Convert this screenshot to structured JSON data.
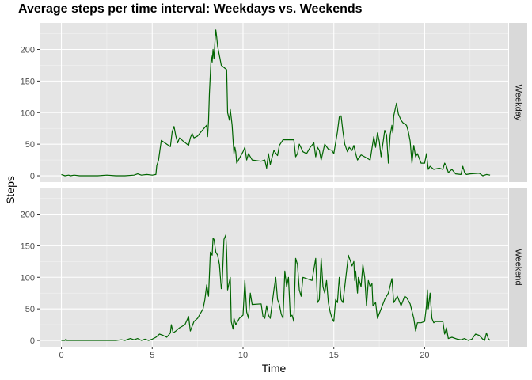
{
  "chart_data": {
    "type": "line",
    "title": "Average steps per time interval: Weekdays vs. Weekends",
    "xlabel": "Time",
    "ylabel": "Steps",
    "xlim": [
      -1.2,
      24.6
    ],
    "ylim": [
      -10,
      242
    ],
    "x_ticks": [
      0,
      5,
      10,
      15,
      20
    ],
    "y_ticks": [
      0,
      50,
      100,
      150,
      200
    ],
    "grid": true,
    "line_color": "#006400",
    "panel_background": "#e5e5e5",
    "strip_background": "#d9d9d9",
    "facets": [
      {
        "label": "Weekday",
        "points": [
          [
            0,
            2
          ],
          [
            0.2,
            0
          ],
          [
            0.4,
            1
          ],
          [
            0.5,
            0
          ],
          [
            0.7,
            1
          ],
          [
            1,
            0
          ],
          [
            1.5,
            0
          ],
          [
            2,
            0
          ],
          [
            2.5,
            1
          ],
          [
            3,
            0
          ],
          [
            3.5,
            0
          ],
          [
            4,
            1
          ],
          [
            4.2,
            3
          ],
          [
            4.4,
            1
          ],
          [
            4.7,
            2
          ],
          [
            5,
            1
          ],
          [
            5.2,
            2
          ],
          [
            5.25,
            16
          ],
          [
            5.35,
            25
          ],
          [
            5.5,
            56
          ],
          [
            5.8,
            50
          ],
          [
            6,
            46
          ],
          [
            6.1,
            70
          ],
          [
            6.2,
            78
          ],
          [
            6.3,
            63
          ],
          [
            6.4,
            52
          ],
          [
            6.5,
            60
          ],
          [
            6.7,
            55
          ],
          [
            7,
            48
          ],
          [
            7.1,
            60
          ],
          [
            7.2,
            67
          ],
          [
            7.3,
            60
          ],
          [
            7.5,
            63
          ],
          [
            7.7,
            70
          ],
          [
            8,
            80
          ],
          [
            8.05,
            62
          ],
          [
            8.1,
            86
          ],
          [
            8.15,
            130
          ],
          [
            8.25,
            190
          ],
          [
            8.3,
            180
          ],
          [
            8.35,
            200
          ],
          [
            8.4,
            185
          ],
          [
            8.45,
            210
          ],
          [
            8.5,
            231
          ],
          [
            8.55,
            220
          ],
          [
            8.6,
            205
          ],
          [
            8.7,
            190
          ],
          [
            8.8,
            175
          ],
          [
            9.1,
            168
          ],
          [
            9.15,
            100
          ],
          [
            9.25,
            88
          ],
          [
            9.3,
            105
          ],
          [
            9.4,
            80
          ],
          [
            9.5,
            35
          ],
          [
            9.55,
            45
          ],
          [
            9.6,
            38
          ],
          [
            9.65,
            20
          ],
          [
            10,
            38
          ],
          [
            10.1,
            45
          ],
          [
            10.2,
            25
          ],
          [
            10.3,
            35
          ],
          [
            10.5,
            25
          ],
          [
            11,
            23
          ],
          [
            11.2,
            25
          ],
          [
            11.3,
            12
          ],
          [
            11.4,
            35
          ],
          [
            11.5,
            18
          ],
          [
            11.7,
            40
          ],
          [
            11.9,
            32
          ],
          [
            12,
            48
          ],
          [
            12.2,
            57
          ],
          [
            12.5,
            57
          ],
          [
            12.8,
            57
          ],
          [
            12.9,
            30
          ],
          [
            13,
            35
          ],
          [
            13.1,
            50
          ],
          [
            13.3,
            38
          ],
          [
            13.5,
            35
          ],
          [
            13.7,
            45
          ],
          [
            13.9,
            52
          ],
          [
            14,
            30
          ],
          [
            14.1,
            45
          ],
          [
            14.2,
            40
          ],
          [
            14.3,
            25
          ],
          [
            14.5,
            50
          ],
          [
            14.7,
            42
          ],
          [
            14.9,
            40
          ],
          [
            15,
            35
          ],
          [
            15.2,
            70
          ],
          [
            15.3,
            93
          ],
          [
            15.4,
            95
          ],
          [
            15.5,
            70
          ],
          [
            15.6,
            50
          ],
          [
            15.75,
            38
          ],
          [
            15.85,
            45
          ],
          [
            16,
            40
          ],
          [
            16.1,
            48
          ],
          [
            16.2,
            35
          ],
          [
            16.3,
            25
          ],
          [
            16.5,
            33
          ],
          [
            16.7,
            30
          ],
          [
            17,
            25
          ],
          [
            17.2,
            62
          ],
          [
            17.3,
            45
          ],
          [
            17.4,
            68
          ],
          [
            17.5,
            55
          ],
          [
            17.6,
            30
          ],
          [
            17.8,
            72
          ],
          [
            17.9,
            65
          ],
          [
            18,
            20
          ],
          [
            18.1,
            65
          ],
          [
            18.2,
            80
          ],
          [
            18.25,
            68
          ],
          [
            18.3,
            95
          ],
          [
            18.45,
            115
          ],
          [
            18.55,
            98
          ],
          [
            18.7,
            88
          ],
          [
            18.8,
            84
          ],
          [
            19,
            80
          ],
          [
            19.1,
            70
          ],
          [
            19.2,
            55
          ],
          [
            19.3,
            20
          ],
          [
            19.4,
            48
          ],
          [
            19.5,
            30
          ],
          [
            19.6,
            35
          ],
          [
            19.8,
            20
          ],
          [
            20,
            20
          ],
          [
            20.1,
            35
          ],
          [
            20.2,
            10
          ],
          [
            20.3,
            15
          ],
          [
            20.5,
            10
          ],
          [
            20.8,
            12
          ],
          [
            21,
            10
          ],
          [
            21.1,
            20
          ],
          [
            21.2,
            15
          ],
          [
            21.3,
            5
          ],
          [
            21.5,
            10
          ],
          [
            21.7,
            3
          ],
          [
            22,
            2
          ],
          [
            22.1,
            15
          ],
          [
            22.2,
            5
          ],
          [
            22.3,
            2
          ],
          [
            22.5,
            3
          ],
          [
            23,
            4
          ],
          [
            23.2,
            0
          ],
          [
            23.4,
            2
          ],
          [
            23.6,
            1
          ]
        ]
      },
      {
        "label": "Weekend",
        "points": [
          [
            0,
            0
          ],
          [
            0.2,
            0
          ],
          [
            0.25,
            2
          ],
          [
            0.3,
            0
          ],
          [
            0.5,
            0
          ],
          [
            1,
            0
          ],
          [
            1.5,
            0
          ],
          [
            2,
            0
          ],
          [
            2.5,
            0
          ],
          [
            3,
            0
          ],
          [
            3.3,
            1
          ],
          [
            3.5,
            0
          ],
          [
            3.8,
            3
          ],
          [
            4,
            1
          ],
          [
            4.2,
            3
          ],
          [
            4.4,
            0
          ],
          [
            4.6,
            2
          ],
          [
            4.8,
            0
          ],
          [
            5,
            2
          ],
          [
            5.2,
            5
          ],
          [
            5.4,
            10
          ],
          [
            5.6,
            8
          ],
          [
            5.8,
            5
          ],
          [
            6,
            12
          ],
          [
            6.05,
            25
          ],
          [
            6.15,
            12
          ],
          [
            6.3,
            15
          ],
          [
            6.5,
            20
          ],
          [
            6.8,
            25
          ],
          [
            7,
            38
          ],
          [
            7.1,
            15
          ],
          [
            7.3,
            30
          ],
          [
            7.5,
            35
          ],
          [
            7.8,
            50
          ],
          [
            7.9,
            65
          ],
          [
            8,
            88
          ],
          [
            8.1,
            70
          ],
          [
            8.2,
            140
          ],
          [
            8.3,
            135
          ],
          [
            8.35,
            162
          ],
          [
            8.4,
            160
          ],
          [
            8.5,
            140
          ],
          [
            8.6,
            135
          ],
          [
            8.7,
            120
          ],
          [
            8.8,
            82
          ],
          [
            8.85,
            90
          ],
          [
            8.95,
            160
          ],
          [
            9.05,
            167
          ],
          [
            9.1,
            140
          ],
          [
            9.15,
            80
          ],
          [
            9.3,
            100
          ],
          [
            9.35,
            30
          ],
          [
            9.45,
            18
          ],
          [
            9.5,
            35
          ],
          [
            9.6,
            25
          ],
          [
            9.8,
            35
          ],
          [
            10,
            40
          ],
          [
            10.1,
            95
          ],
          [
            10.2,
            45
          ],
          [
            10.3,
            35
          ],
          [
            10.4,
            75
          ],
          [
            10.5,
            57
          ],
          [
            11,
            58
          ],
          [
            11.1,
            38
          ],
          [
            11.2,
            35
          ],
          [
            11.3,
            55
          ],
          [
            11.4,
            40
          ],
          [
            11.5,
            35
          ],
          [
            11.7,
            80
          ],
          [
            11.8,
            100
          ],
          [
            11.9,
            65
          ],
          [
            12,
            57
          ],
          [
            12.1,
            42
          ],
          [
            12.2,
            35
          ],
          [
            12.3,
            110
          ],
          [
            12.4,
            85
          ],
          [
            12.5,
            100
          ],
          [
            12.6,
            38
          ],
          [
            12.7,
            40
          ],
          [
            12.8,
            30
          ],
          [
            12.9,
            130
          ],
          [
            13,
            120
          ],
          [
            13.1,
            80
          ],
          [
            13.2,
            70
          ],
          [
            13.3,
            100
          ],
          [
            13.8,
            95
          ],
          [
            14,
            130
          ],
          [
            14.1,
            60
          ],
          [
            14.2,
            65
          ],
          [
            14.3,
            130
          ],
          [
            14.4,
            85
          ],
          [
            14.5,
            75
          ],
          [
            14.6,
            95
          ],
          [
            14.7,
            60
          ],
          [
            14.8,
            45
          ],
          [
            14.9,
            35
          ],
          [
            15,
            30
          ],
          [
            15.1,
            65
          ],
          [
            15.2,
            60
          ],
          [
            15.3,
            100
          ],
          [
            15.4,
            65
          ],
          [
            15.5,
            60
          ],
          [
            15.8,
            135
          ],
          [
            16,
            118
          ],
          [
            16.1,
            125
          ],
          [
            16.15,
            95
          ],
          [
            16.2,
            110
          ],
          [
            16.3,
            75
          ],
          [
            16.35,
            100
          ],
          [
            16.5,
            85
          ],
          [
            16.6,
            120
          ],
          [
            16.7,
            100
          ],
          [
            16.8,
            55
          ],
          [
            16.9,
            95
          ],
          [
            17,
            85
          ],
          [
            17.1,
            90
          ],
          [
            17.15,
            55
          ],
          [
            17.3,
            60
          ],
          [
            17.4,
            35
          ],
          [
            17.6,
            50
          ],
          [
            17.8,
            65
          ],
          [
            18,
            75
          ],
          [
            18.2,
            98
          ],
          [
            18.3,
            60
          ],
          [
            18.5,
            70
          ],
          [
            18.7,
            55
          ],
          [
            18.9,
            70
          ],
          [
            19,
            68
          ],
          [
            19.2,
            58
          ],
          [
            19.4,
            35
          ],
          [
            19.5,
            15
          ],
          [
            19.6,
            28
          ],
          [
            19.8,
            28
          ],
          [
            20,
            30
          ],
          [
            20.1,
            55
          ],
          [
            20.15,
            80
          ],
          [
            20.2,
            50
          ],
          [
            20.3,
            75
          ],
          [
            20.4,
            35
          ],
          [
            20.5,
            28
          ],
          [
            20.6,
            30
          ],
          [
            21,
            30
          ],
          [
            21.1,
            10
          ],
          [
            21.2,
            20
          ],
          [
            21.3,
            3
          ],
          [
            21.5,
            5
          ],
          [
            21.8,
            2
          ],
          [
            22,
            1
          ],
          [
            22.2,
            3
          ],
          [
            22.4,
            0
          ],
          [
            22.6,
            2
          ],
          [
            22.8,
            10
          ],
          [
            23,
            8
          ],
          [
            23.2,
            2
          ],
          [
            23.3,
            0
          ],
          [
            23.4,
            12
          ],
          [
            23.5,
            3
          ],
          [
            23.6,
            0
          ]
        ]
      }
    ]
  }
}
